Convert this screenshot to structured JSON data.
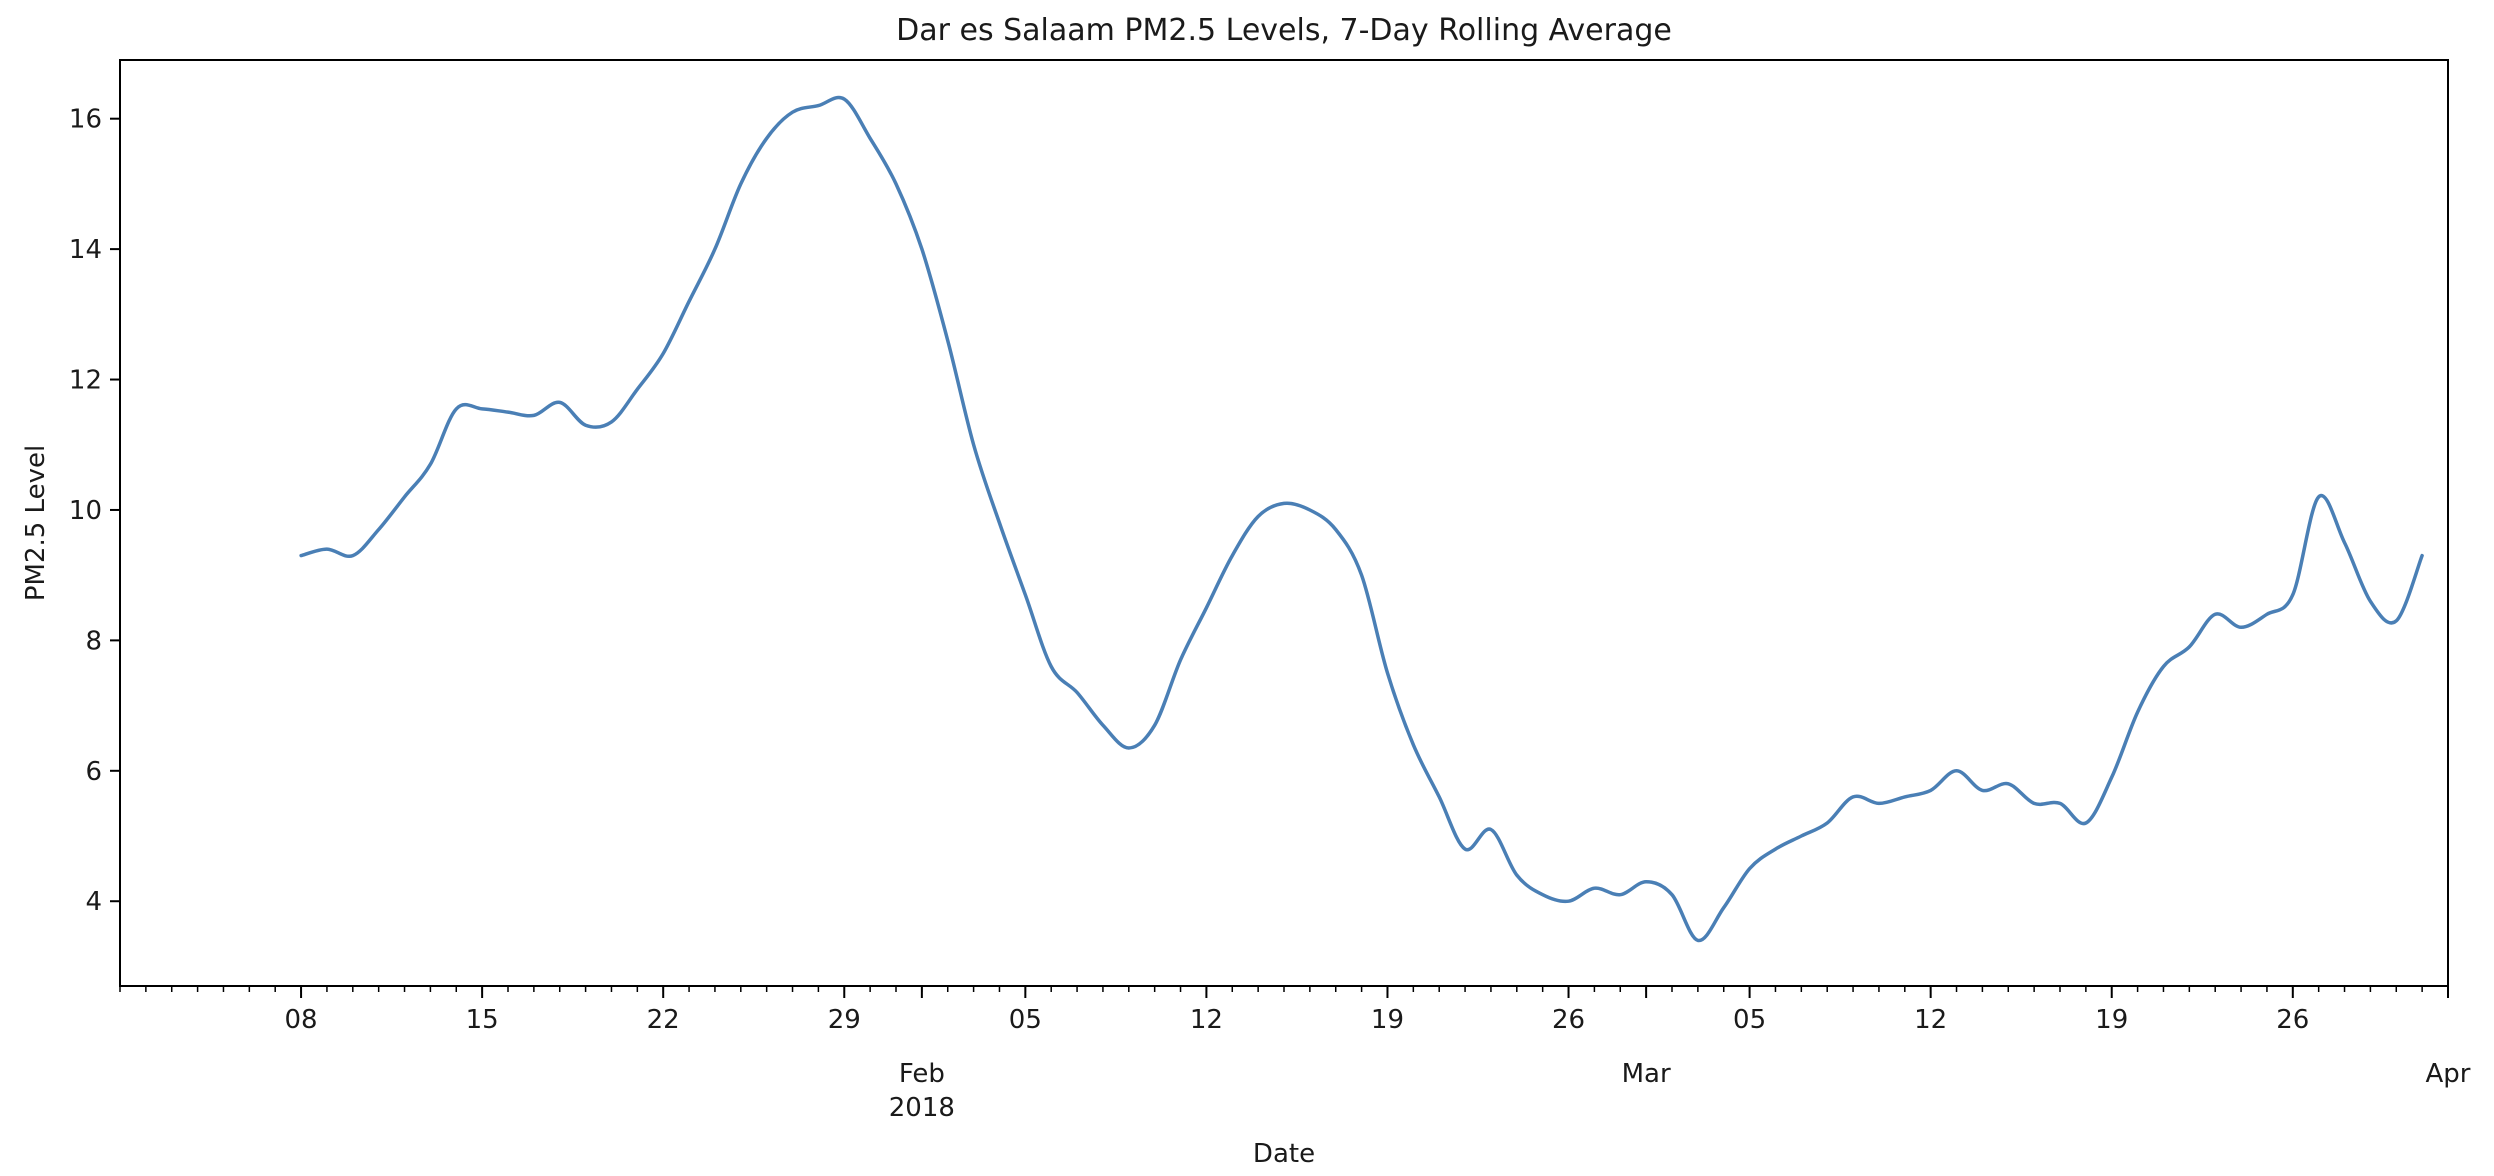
{
  "chart_data": {
    "type": "line",
    "title": "Dar es Salaam PM2.5 Levels, 7-Day Rolling Average",
    "xlabel": "Date",
    "ylabel": "PM2.5 Level",
    "xlim": [
      "2018-01-01",
      "2018-04-01"
    ],
    "ylim": [
      2.7,
      16.9
    ],
    "yticks": [
      4,
      6,
      8,
      10,
      12,
      14,
      16
    ],
    "xticks_major": [
      {
        "date": "2018-01-08",
        "label": "08"
      },
      {
        "date": "2018-01-15",
        "label": "15"
      },
      {
        "date": "2018-01-22",
        "label": "22"
      },
      {
        "date": "2018-01-29",
        "label": "29"
      },
      {
        "date": "2018-02-05",
        "label": "05"
      },
      {
        "date": "2018-02-12",
        "label": "12"
      },
      {
        "date": "2018-02-19",
        "label": "19"
      },
      {
        "date": "2018-02-26",
        "label": "26"
      },
      {
        "date": "2018-03-05",
        "label": "05"
      },
      {
        "date": "2018-03-12",
        "label": "12"
      },
      {
        "date": "2018-03-19",
        "label": "19"
      },
      {
        "date": "2018-03-26",
        "label": "26"
      }
    ],
    "xticks_month": [
      {
        "date": "2018-02-01",
        "label": "Feb",
        "sublabel": "2018"
      },
      {
        "date": "2018-03-01",
        "label": "Mar",
        "sublabel": ""
      },
      {
        "date": "2018-04-01",
        "label": "Apr",
        "sublabel": ""
      }
    ],
    "grid": false,
    "series": [
      {
        "color": "#4a7fb5",
        "points": [
          [
            "2018-01-08",
            9.3
          ],
          [
            "2018-01-09",
            9.4
          ],
          [
            "2018-01-10",
            9.3
          ],
          [
            "2018-01-11",
            9.7
          ],
          [
            "2018-01-12",
            10.2
          ],
          [
            "2018-01-13",
            10.7
          ],
          [
            "2018-01-14",
            11.55
          ],
          [
            "2018-01-15",
            11.55
          ],
          [
            "2018-01-16",
            11.5
          ],
          [
            "2018-01-17",
            11.45
          ],
          [
            "2018-01-18",
            11.65
          ],
          [
            "2018-01-19",
            11.3
          ],
          [
            "2018-01-20",
            11.35
          ],
          [
            "2018-01-21",
            11.85
          ],
          [
            "2018-01-22",
            12.4
          ],
          [
            "2018-01-23",
            13.2
          ],
          [
            "2018-01-24",
            14.0
          ],
          [
            "2018-01-25",
            15.0
          ],
          [
            "2018-01-26",
            15.7
          ],
          [
            "2018-01-27",
            16.1
          ],
          [
            "2018-01-28",
            16.2
          ],
          [
            "2018-01-29",
            16.3
          ],
          [
            "2018-01-30",
            15.7
          ],
          [
            "2018-01-31",
            15.0
          ],
          [
            "2018-02-01",
            14.0
          ],
          [
            "2018-02-02",
            12.6
          ],
          [
            "2018-02-03",
            11.0
          ],
          [
            "2018-02-04",
            9.8
          ],
          [
            "2018-02-05",
            8.7
          ],
          [
            "2018-02-06",
            7.6
          ],
          [
            "2018-02-07",
            7.2
          ],
          [
            "2018-02-08",
            6.7
          ],
          [
            "2018-02-09",
            6.35
          ],
          [
            "2018-02-10",
            6.7
          ],
          [
            "2018-02-11",
            7.7
          ],
          [
            "2018-02-12",
            8.5
          ],
          [
            "2018-02-13",
            9.3
          ],
          [
            "2018-02-14",
            9.9
          ],
          [
            "2018-02-15",
            10.1
          ],
          [
            "2018-02-16",
            10.0
          ],
          [
            "2018-02-17",
            9.7
          ],
          [
            "2018-02-18",
            9.0
          ],
          [
            "2018-02-19",
            7.5
          ],
          [
            "2018-02-20",
            6.4
          ],
          [
            "2018-02-21",
            5.6
          ],
          [
            "2018-02-22",
            4.8
          ],
          [
            "2018-02-23",
            5.1
          ],
          [
            "2018-02-24",
            4.4
          ],
          [
            "2018-02-25",
            4.1
          ],
          [
            "2018-02-26",
            4.0
          ],
          [
            "2018-02-27",
            4.2
          ],
          [
            "2018-02-28",
            4.1
          ],
          [
            "2018-03-01",
            4.3
          ],
          [
            "2018-03-02",
            4.1
          ],
          [
            "2018-03-03",
            3.4
          ],
          [
            "2018-03-04",
            3.9
          ],
          [
            "2018-03-05",
            4.5
          ],
          [
            "2018-03-06",
            4.8
          ],
          [
            "2018-03-07",
            5.0
          ],
          [
            "2018-03-08",
            5.2
          ],
          [
            "2018-03-09",
            5.6
          ],
          [
            "2018-03-10",
            5.5
          ],
          [
            "2018-03-11",
            5.6
          ],
          [
            "2018-03-12",
            5.7
          ],
          [
            "2018-03-13",
            6.0
          ],
          [
            "2018-03-14",
            5.7
          ],
          [
            "2018-03-15",
            5.8
          ],
          [
            "2018-03-16",
            5.5
          ],
          [
            "2018-03-17",
            5.5
          ],
          [
            "2018-03-18",
            5.2
          ],
          [
            "2018-03-19",
            5.9
          ],
          [
            "2018-03-20",
            6.9
          ],
          [
            "2018-03-21",
            7.6
          ],
          [
            "2018-03-22",
            7.9
          ],
          [
            "2018-03-23",
            8.4
          ],
          [
            "2018-03-24",
            8.2
          ],
          [
            "2018-03-25",
            8.4
          ],
          [
            "2018-03-26",
            8.7
          ],
          [
            "2018-03-27",
            10.2
          ],
          [
            "2018-03-28",
            9.5
          ],
          [
            "2018-03-29",
            8.6
          ],
          [
            "2018-03-30",
            8.3
          ],
          [
            "2018-03-31",
            9.3
          ]
        ]
      }
    ]
  }
}
